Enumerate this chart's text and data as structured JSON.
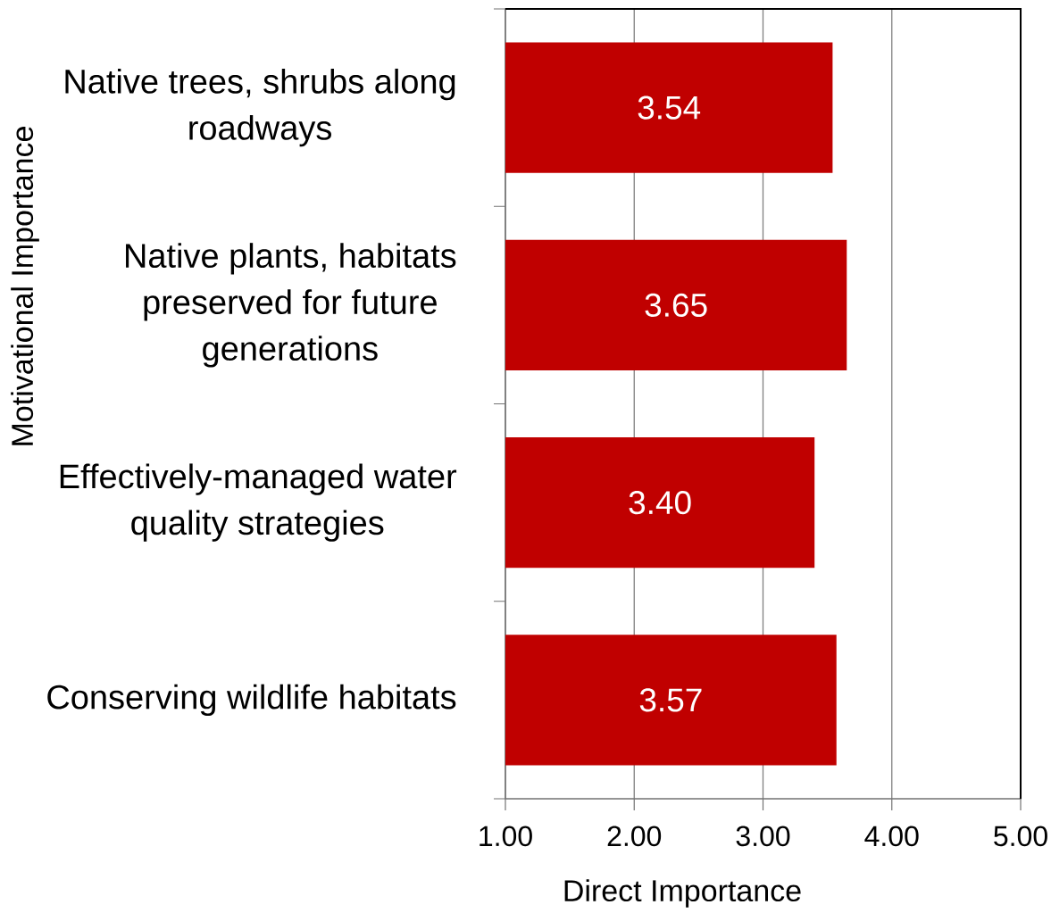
{
  "chart_data": {
    "type": "bar",
    "orientation": "horizontal",
    "categories": [
      "Native trees, shrubs along roadways",
      "Native plants, habitats preserved for future generations",
      "Effectively-managed water quality strategies",
      "Conserving wildlife habitats"
    ],
    "values": [
      3.54,
      3.65,
      3.4,
      3.57
    ],
    "value_labels": [
      "3.54",
      "3.65",
      "3.40",
      "3.57"
    ],
    "color": "#c00000",
    "xlim": [
      1,
      5
    ],
    "xticks": [
      {
        "value": 1,
        "label": "1.00"
      },
      {
        "value": 2,
        "label": "2.00"
      },
      {
        "value": 3,
        "label": "3.00"
      },
      {
        "value": 4,
        "label": "4.00"
      },
      {
        "value": 5,
        "label": "5.00"
      }
    ],
    "xlabel": "Direct Importance",
    "ylabel": "Motivational Importance",
    "grid": "x"
  }
}
